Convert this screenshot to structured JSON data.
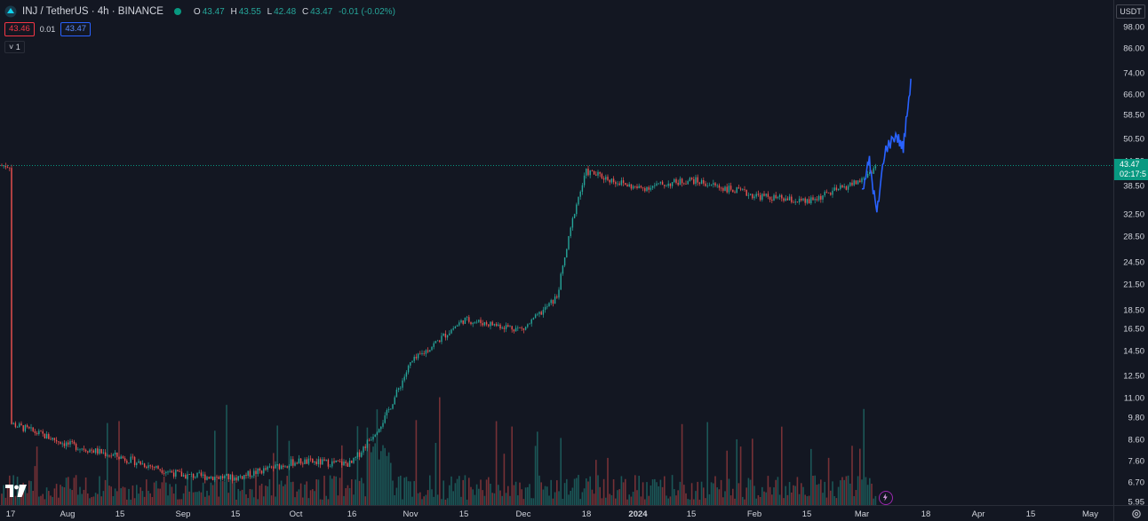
{
  "legend": {
    "symbol": "INJ / TetherUS · 4h · BINANCE",
    "open_label": "O",
    "open": "43.47",
    "high_label": "H",
    "high": "43.55",
    "low_label": "L",
    "low": "42.48",
    "close_label": "C",
    "close": "43.47",
    "change": "-0.01 (-0.02%)"
  },
  "quotes": {
    "bid": "43.46",
    "spread": "0.01",
    "ask": "43.47"
  },
  "indicator_toggle": "˅ 1",
  "price_axis": {
    "currency": "USDT",
    "ticks": [
      "98.00",
      "86.00",
      "74.00",
      "66.00",
      "58.50",
      "50.50",
      "44.50",
      "38.50",
      "32.50",
      "28.50",
      "24.50",
      "21.50",
      "18.50",
      "16.50",
      "14.50",
      "12.50",
      "11.00",
      "9.80",
      "8.60",
      "7.60",
      "6.70",
      "5.95"
    ],
    "last_price": "43.47",
    "countdown": "02:17:5"
  },
  "time_axis": {
    "ticks": [
      {
        "label": "17",
        "bold": false
      },
      {
        "label": "Aug",
        "bold": false
      },
      {
        "label": "15",
        "bold": false
      },
      {
        "label": "Sep",
        "bold": false
      },
      {
        "label": "15",
        "bold": false
      },
      {
        "label": "Oct",
        "bold": false
      },
      {
        "label": "16",
        "bold": false
      },
      {
        "label": "Nov",
        "bold": false
      },
      {
        "label": "15",
        "bold": false
      },
      {
        "label": "Dec",
        "bold": false
      },
      {
        "label": "18",
        "bold": false
      },
      {
        "label": "2024",
        "bold": true
      },
      {
        "label": "15",
        "bold": false
      },
      {
        "label": "Feb",
        "bold": false
      },
      {
        "label": "15",
        "bold": false
      },
      {
        "label": "Mar",
        "bold": false
      },
      {
        "label": "18",
        "bold": false
      },
      {
        "label": "Apr",
        "bold": false
      },
      {
        "label": "15",
        "bold": false
      },
      {
        "label": "May",
        "bold": false
      }
    ]
  },
  "colors": {
    "up": "#26a69a",
    "down": "#ef5350",
    "projection": "#2962ff",
    "background": "#131722"
  },
  "chart_data": {
    "type": "candlestick",
    "scale": "log",
    "ylim": [
      5.95,
      98.0
    ],
    "last_price": 43.47,
    "close_path": [
      [
        "Jul 17",
        9.5
      ],
      [
        "Aug 1",
        8.4
      ],
      [
        "Aug 15",
        7.8
      ],
      [
        "Sep 1",
        7.0
      ],
      [
        "Sep 15",
        6.9
      ],
      [
        "Oct 1",
        7.6
      ],
      [
        "Oct 16",
        7.5
      ],
      [
        "Oct 25",
        9.8
      ],
      [
        "Nov 1",
        13.5
      ],
      [
        "Nov 15",
        17.5
      ],
      [
        "Dec 1",
        16.5
      ],
      [
        "Dec 10",
        20.0
      ],
      [
        "Dec 15",
        34.0
      ],
      [
        "Dec 18",
        42.0
      ],
      [
        "Jan 1",
        38.0
      ],
      [
        "Jan 15",
        40.0
      ],
      [
        "Feb 1",
        36.5
      ],
      [
        "Feb 15",
        35.0
      ],
      [
        "Mar 1",
        40.0
      ],
      [
        "Mar 5",
        43.5
      ]
    ],
    "projection": [
      [
        "Mar 1",
        38.0
      ],
      [
        "Mar 3",
        44.5
      ],
      [
        "Mar 5",
        32.5
      ],
      [
        "Mar 7",
        47.0
      ],
      [
        "Mar 10",
        52.0
      ],
      [
        "Mar 12",
        48.0
      ],
      [
        "Mar 14",
        72.0
      ]
    ]
  }
}
